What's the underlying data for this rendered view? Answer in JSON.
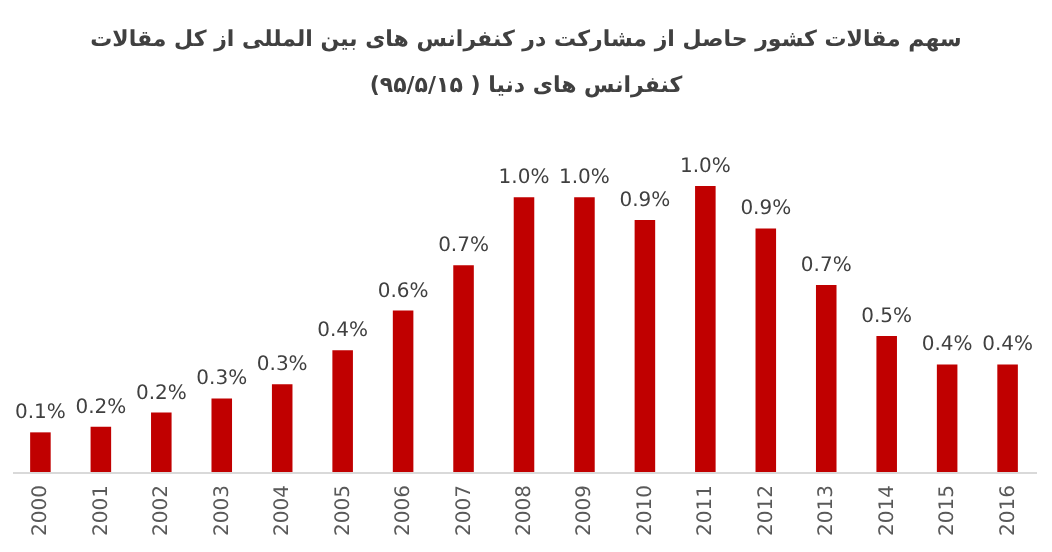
{
  "chart_data": {
    "type": "bar",
    "title": "سهم مقالات کشور حاصل از مشارکت در کنفرانس های بین المللی از کل مقالات کنفرانس های دنیا ( ۹۵/۵/۱۵)",
    "categories": [
      "2000",
      "2001",
      "2002",
      "2003",
      "2004",
      "2005",
      "2006",
      "2007",
      "2008",
      "2009",
      "2010",
      "2011",
      "2012",
      "2013",
      "2014",
      "2015",
      "2016"
    ],
    "values": [
      0.14,
      0.16,
      0.21,
      0.26,
      0.31,
      0.43,
      0.57,
      0.73,
      0.97,
      0.97,
      0.89,
      1.01,
      0.86,
      0.66,
      0.48,
      0.38,
      0.38
    ],
    "value_labels": [
      "0.1%",
      "0.2%",
      "0.2%",
      "0.3%",
      "0.3%",
      "0.4%",
      "0.6%",
      "0.7%",
      "1.0%",
      "1.0%",
      "0.9%",
      "1.0%",
      "0.9%",
      "0.7%",
      "0.5%",
      "0.4%",
      "0.4%"
    ],
    "color": "#c00000"
  }
}
